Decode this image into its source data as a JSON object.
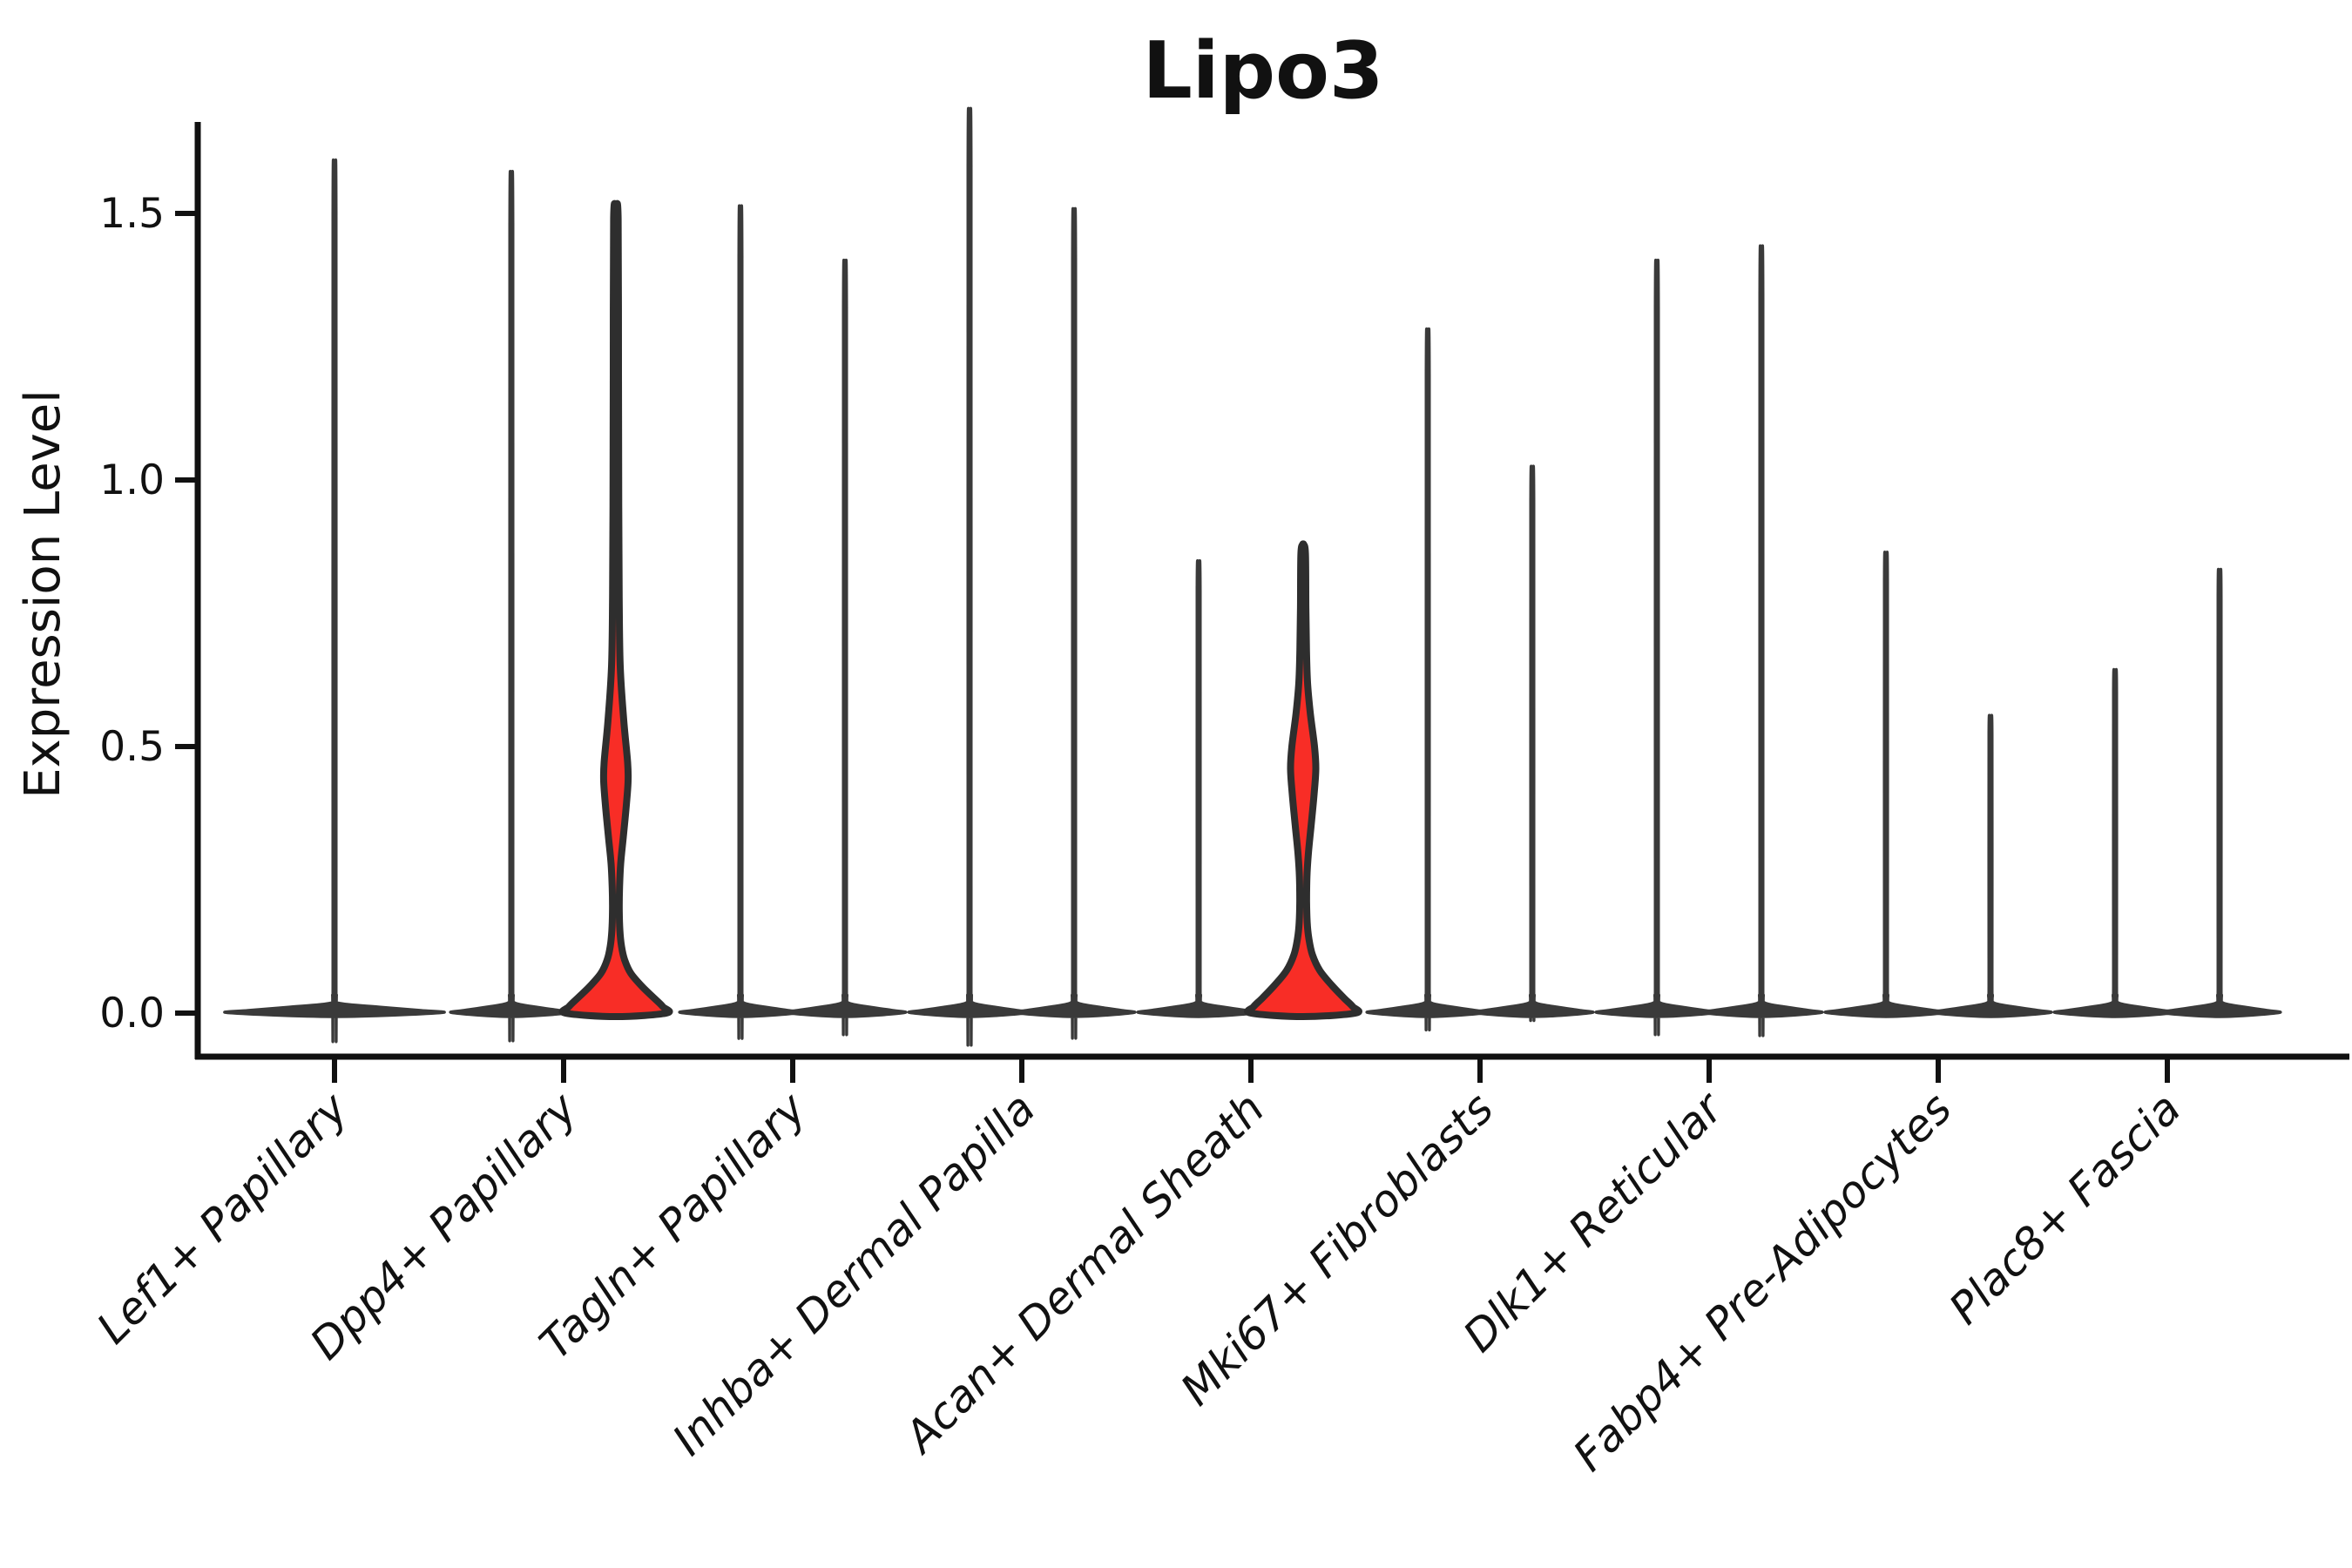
{
  "figure": {
    "background": "#ffffff"
  },
  "chart_data": {
    "type": "violin",
    "title": "Lipo3",
    "ylabel": "Expression Level",
    "xlabel": "",
    "legend": "none",
    "grid": false,
    "ylim": [
      -0.04,
      1.67
    ],
    "yticks": [
      {
        "value": 0.0,
        "label": "0.0"
      },
      {
        "value": 0.5,
        "label": "0.5"
      },
      {
        "value": 1.0,
        "label": "1.0"
      },
      {
        "value": 1.5,
        "label": "1.5"
      }
    ],
    "categories": [
      "Lef1+ Papillary",
      "Dpp4+ Papillary",
      "Tagln+ Papillary",
      "Inhba+ Dermal Papilla",
      "Acan+ Dermal Sheath",
      "Mki67+ Fibroblasts",
      "Dlk1+ Reticular",
      "Fabp4+ Pre-Adipocytes",
      "Plac8+ Fascia"
    ],
    "colors": {
      "violin_dark": "#3a3a3a",
      "violin_outline": "#2e2e2e",
      "highlight_fill": "#F82D26",
      "axis": "#111111",
      "text": "#111111"
    },
    "violins": [
      {
        "category": "Lef1+ Papillary",
        "position": "center",
        "max_expression": 1.5,
        "fill": "dark"
      },
      {
        "category": "Dpp4+ Papillary",
        "position": "left",
        "max_expression": 1.48,
        "fill": "dark"
      },
      {
        "category": "Dpp4+ Papillary",
        "position": "right",
        "max_expression": 1.51,
        "fill": "red",
        "profile": [
          [
            1.51,
            0.3
          ],
          [
            1.49,
            2.6
          ],
          [
            1.2,
            3.0
          ],
          [
            0.95,
            3.3
          ],
          [
            0.78,
            3.8
          ],
          [
            0.65,
            5.0
          ],
          [
            0.55,
            9.0
          ],
          [
            0.47,
            13.5
          ],
          [
            0.435,
            14.0
          ],
          [
            0.39,
            12.0
          ],
          [
            0.33,
            8.5
          ],
          [
            0.28,
            5.5
          ],
          [
            0.235,
            4.2
          ],
          [
            0.19,
            3.9
          ],
          [
            0.155,
            4.6
          ],
          [
            0.125,
            6.5
          ],
          [
            0.1,
            10.0
          ],
          [
            0.075,
            17.0
          ],
          [
            0.05,
            30.0
          ],
          [
            0.028,
            44.0
          ],
          [
            0.012,
            54.0
          ],
          [
            0.0,
            58.0
          ]
        ]
      },
      {
        "category": "Tagln+ Papillary",
        "position": "left",
        "max_expression": 1.42,
        "fill": "dark"
      },
      {
        "category": "Tagln+ Papillary",
        "position": "right",
        "max_expression": 1.325,
        "fill": "dark"
      },
      {
        "category": "Inhba+ Dermal Papilla",
        "position": "left",
        "max_expression": 1.59,
        "fill": "dark"
      },
      {
        "category": "Inhba+ Dermal Papilla",
        "position": "right",
        "max_expression": 1.415,
        "fill": "dark"
      },
      {
        "category": "Acan+ Dermal Sheath",
        "position": "left",
        "max_expression": 0.8,
        "fill": "dark"
      },
      {
        "category": "Acan+ Dermal Sheath",
        "position": "right",
        "max_expression": 0.88,
        "fill": "red",
        "profile": [
          [
            0.88,
            0.3
          ],
          [
            0.862,
            2.6
          ],
          [
            0.76,
            3.1
          ],
          [
            0.68,
            3.8
          ],
          [
            0.62,
            5.0
          ],
          [
            0.565,
            8.0
          ],
          [
            0.5,
            13.0
          ],
          [
            0.458,
            14.5
          ],
          [
            0.41,
            12.5
          ],
          [
            0.35,
            9.0
          ],
          [
            0.3,
            6.0
          ],
          [
            0.255,
            4.3
          ],
          [
            0.21,
            3.9
          ],
          [
            0.17,
            4.6
          ],
          [
            0.14,
            6.5
          ],
          [
            0.11,
            10.5
          ],
          [
            0.08,
            19.0
          ],
          [
            0.052,
            33.0
          ],
          [
            0.028,
            47.0
          ],
          [
            0.012,
            57.0
          ],
          [
            0.0,
            60.0
          ]
        ]
      },
      {
        "category": "Mki67+ Fibroblasts",
        "position": "left",
        "max_expression": 1.205,
        "fill": "dark"
      },
      {
        "category": "Mki67+ Fibroblasts",
        "position": "right",
        "max_expression": 0.965,
        "fill": "dark"
      },
      {
        "category": "Dlk1+ Reticular",
        "position": "left",
        "max_expression": 1.325,
        "fill": "dark"
      },
      {
        "category": "Dlk1+ Reticular",
        "position": "right",
        "max_expression": 1.35,
        "fill": "dark"
      },
      {
        "category": "Fabp4+ Pre-Adipocytes",
        "position": "left",
        "max_expression": 0.815,
        "fill": "dark"
      },
      {
        "category": "Fabp4+ Pre-Adipocytes",
        "position": "right",
        "max_expression": 0.53,
        "fill": "dark"
      },
      {
        "category": "Plac8+ Fascia",
        "position": "left",
        "max_expression": 0.61,
        "fill": "dark"
      },
      {
        "category": "Plac8+ Fascia",
        "position": "right",
        "max_expression": 0.785,
        "fill": "dark"
      }
    ]
  }
}
